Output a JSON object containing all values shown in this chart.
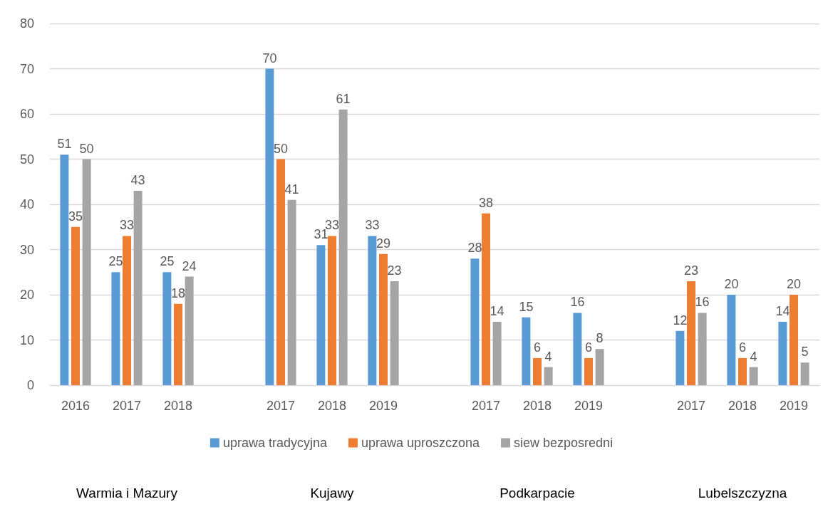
{
  "chart_data": {
    "type": "bar",
    "categories": [
      "2016",
      "2017",
      "2018",
      null,
      "2017",
      "2018",
      "2019",
      null,
      "2017",
      "2018",
      "2019",
      null,
      "2017",
      "2018",
      "2019"
    ],
    "series": [
      {
        "name": "uprawa tradycyjna",
        "color": "#5b9bd5",
        "values": [
          51,
          25,
          25,
          null,
          70,
          31,
          33,
          null,
          28,
          15,
          16,
          null,
          12,
          20,
          14
        ]
      },
      {
        "name": "uprawa uproszczona",
        "color": "#ed7d31",
        "values": [
          35,
          33,
          18,
          null,
          50,
          33,
          29,
          null,
          38,
          6,
          6,
          null,
          23,
          6,
          20
        ]
      },
      {
        "name": "siew bezposredni",
        "color": "#a5a5a5",
        "values": [
          50,
          43,
          24,
          null,
          41,
          61,
          23,
          null,
          14,
          4,
          8,
          null,
          16,
          4,
          5
        ]
      }
    ],
    "ylim": [
      0,
      80
    ],
    "yticks": [
      0,
      10,
      20,
      30,
      40,
      50,
      60,
      70,
      80
    ],
    "grid": "y",
    "legend": "bottom",
    "data_labels": true,
    "annotations": [
      "Warmia i Mazury",
      "Kujawy",
      "Podkarpacie",
      "Lubelszczyzna"
    ]
  }
}
